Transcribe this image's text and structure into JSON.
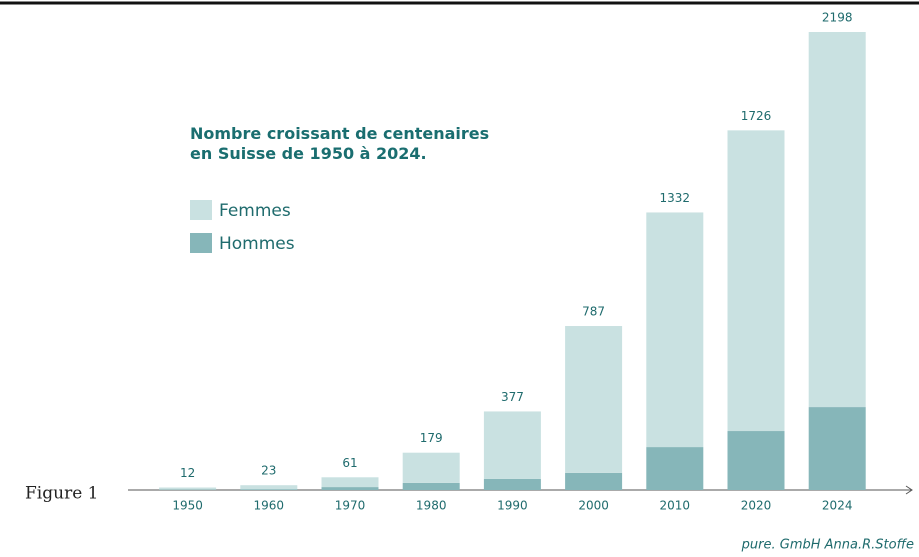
{
  "chart_data": {
    "type": "stacked_bar",
    "title": "Nombre croissant de centenaires\nen Suisse de 1950 à 2024.",
    "figure_label": "Figure 1",
    "credit": "pure. GmbH Anna.R.Stoffe",
    "categories": [
      "1950",
      "1960",
      "1970",
      "1980",
      "1990",
      "2000",
      "2010",
      "2020",
      "2024"
    ],
    "series": [
      {
        "name": "Hommes",
        "color": "#86b6b9",
        "values": [
          2,
          4,
          14,
          34,
          53,
          82,
          206,
          283,
          398
        ]
      },
      {
        "name": "Femmes",
        "color": "#c9e1e1",
        "values": [
          10,
          19,
          47,
          145,
          324,
          705,
          1126,
          1443,
          1800
        ]
      }
    ],
    "totals": [
      12,
      23,
      61,
      179,
      377,
      787,
      1332,
      1726,
      2198
    ]
  }
}
